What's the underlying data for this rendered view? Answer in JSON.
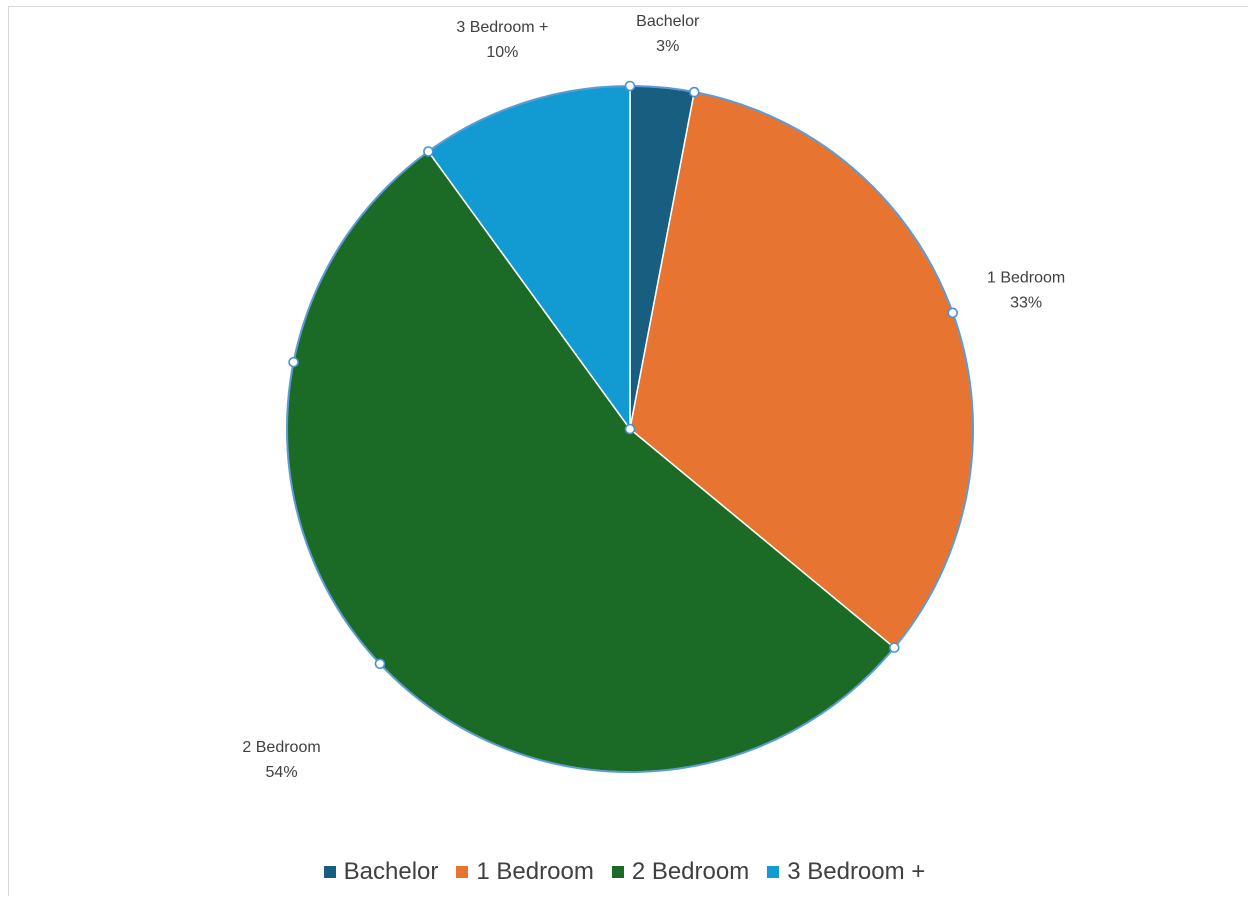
{
  "chart_data": {
    "type": "pie",
    "categories": [
      "Bachelor",
      "1 Bedroom",
      "2 Bedroom",
      "3 Bedroom +"
    ],
    "values": [
      3,
      33,
      54,
      10
    ],
    "data_labels": [
      {
        "name": "Bachelor",
        "value": "3%"
      },
      {
        "name": "1 Bedroom",
        "value": "33%"
      },
      {
        "name": "2 Bedroom",
        "value": "54%"
      },
      {
        "name": "3 Bedroom +",
        "value": "10%"
      }
    ],
    "colors": [
      "#175e80",
      "#e87431",
      "#1b6b27",
      "#129ad3"
    ],
    "legend_position": "bottom",
    "title": "",
    "selected": true
  }
}
